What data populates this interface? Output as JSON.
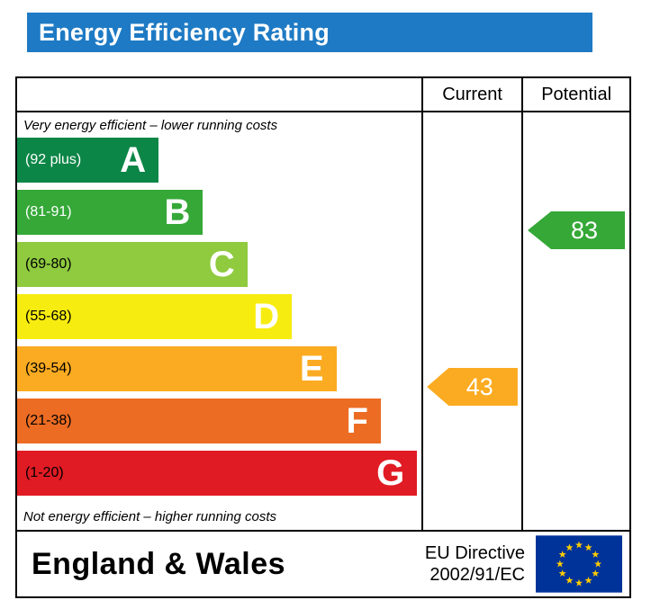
{
  "title": "Energy Efficiency Rating",
  "title_bar_color": "#1e7ac4",
  "columns": {
    "current": "Current",
    "potential": "Potential"
  },
  "chart_data": {
    "type": "bar",
    "title": "Energy Efficiency Rating",
    "top_note": "Very energy efficient – lower running costs",
    "bottom_note": "Not energy efficient – higher running costs",
    "bands": [
      {
        "letter": "A",
        "range": "(92 plus)",
        "min": 92,
        "max": 100,
        "color": "#0c8647",
        "width_pct": 35,
        "label_color": "#ffffff"
      },
      {
        "letter": "B",
        "range": "(81-91)",
        "min": 81,
        "max": 91,
        "color": "#35a838",
        "width_pct": 46,
        "label_color": "#ffffff"
      },
      {
        "letter": "C",
        "range": "(69-80)",
        "min": 69,
        "max": 80,
        "color": "#8fca3f",
        "width_pct": 57,
        "label_color": "#000000"
      },
      {
        "letter": "D",
        "range": "(55-68)",
        "min": 55,
        "max": 68,
        "color": "#f7ec0f",
        "width_pct": 68,
        "label_color": "#000000"
      },
      {
        "letter": "E",
        "range": "(39-54)",
        "min": 39,
        "max": 54,
        "color": "#fbab21",
        "width_pct": 79,
        "label_color": "#000000"
      },
      {
        "letter": "F",
        "range": "(21-38)",
        "min": 21,
        "max": 38,
        "color": "#ec6c23",
        "width_pct": 90,
        "label_color": "#000000"
      },
      {
        "letter": "G",
        "range": "(1-20)",
        "min": 1,
        "max": 20,
        "color": "#e01b23",
        "width_pct": 99,
        "label_color": "#000000"
      }
    ],
    "markers": {
      "current": {
        "value": 43,
        "band": "E",
        "band_index": 4,
        "color": "#fbab21"
      },
      "potential": {
        "value": 83,
        "band": "B",
        "band_index": 1,
        "color": "#35a838"
      }
    },
    "legend_position": "none",
    "grid": false
  },
  "footer": {
    "region": "England & Wales",
    "directive_line1": "EU Directive",
    "directive_line2": "2002/91/EC",
    "eu_flag_colors": {
      "background": "#003399",
      "stars": "#ffcc00"
    }
  }
}
